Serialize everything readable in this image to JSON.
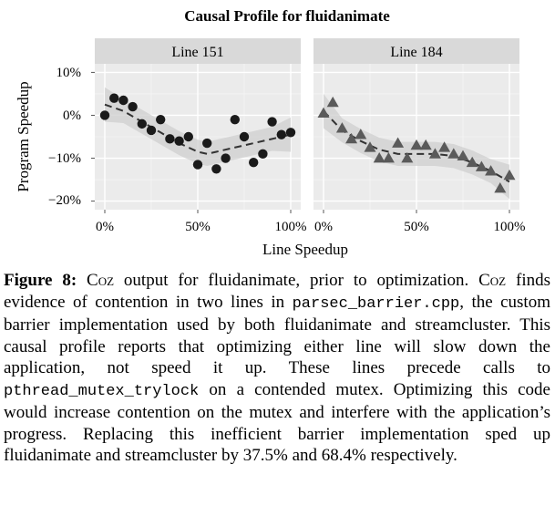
{
  "chart_data": {
    "type": "scatter",
    "title": "Causal Profile for fluidanimate",
    "xlabel": "Line Speedup",
    "ylabel": "Program Speedup",
    "xlim": [
      0,
      1
    ],
    "ylim": [
      -0.22,
      0.12
    ],
    "y_ticks": [
      0.1,
      0.0,
      -0.1,
      -0.2
    ],
    "y_tick_labels": [
      "10%",
      "0%",
      "−10%",
      "−20%"
    ],
    "x_ticks": [
      0.0,
      0.5,
      1.0
    ],
    "x_tick_labels": [
      "0%",
      "50%",
      "100%"
    ],
    "grid": true,
    "panels": [
      {
        "label": "Line 151",
        "marker": "circle",
        "x": [
          0.0,
          0.05,
          0.1,
          0.15,
          0.2,
          0.25,
          0.3,
          0.35,
          0.4,
          0.45,
          0.5,
          0.55,
          0.6,
          0.65,
          0.7,
          0.75,
          0.8,
          0.85,
          0.9,
          0.95,
          1.0
        ],
        "y": [
          0.0,
          0.04,
          0.035,
          0.02,
          -0.02,
          -0.035,
          -0.01,
          -0.055,
          -0.06,
          -0.05,
          -0.115,
          -0.065,
          -0.125,
          -0.1,
          -0.01,
          -0.05,
          -0.11,
          -0.09,
          -0.015,
          -0.045,
          -0.04
        ],
        "trend_x": [
          0.0,
          0.1,
          0.2,
          0.3,
          0.4,
          0.5,
          0.55,
          0.6,
          0.7,
          0.8,
          0.9,
          1.0
        ],
        "trend_y": [
          0.025,
          0.01,
          -0.015,
          -0.04,
          -0.065,
          -0.085,
          -0.09,
          -0.085,
          -0.075,
          -0.065,
          -0.055,
          -0.045
        ]
      },
      {
        "label": "Line 184",
        "marker": "triangle",
        "x": [
          0.0,
          0.05,
          0.1,
          0.15,
          0.2,
          0.25,
          0.3,
          0.35,
          0.4,
          0.45,
          0.5,
          0.55,
          0.6,
          0.65,
          0.7,
          0.75,
          0.8,
          0.85,
          0.9,
          0.95,
          1.0
        ],
        "y": [
          0.005,
          0.03,
          -0.03,
          -0.055,
          -0.045,
          -0.075,
          -0.1,
          -0.1,
          -0.065,
          -0.1,
          -0.07,
          -0.07,
          -0.09,
          -0.075,
          -0.09,
          -0.095,
          -0.11,
          -0.12,
          -0.13,
          -0.17,
          -0.14
        ],
        "trend_x": [
          0.0,
          0.1,
          0.2,
          0.3,
          0.4,
          0.5,
          0.6,
          0.7,
          0.8,
          0.9,
          1.0
        ],
        "trend_y": [
          0.01,
          -0.035,
          -0.06,
          -0.08,
          -0.09,
          -0.09,
          -0.09,
          -0.095,
          -0.11,
          -0.13,
          -0.155
        ]
      }
    ]
  },
  "caption": {
    "label": "Figure 8:",
    "p1": " ",
    "coz1": "Coz",
    "p2": " output for fluidanimate, prior to optimization. ",
    "coz2": "Coz",
    "p3": " finds evidence of contention in two lines in ",
    "code1": "parsec_barrier.cpp",
    "p4": ", the custom barrier implementation used by both fluidanimate and streamcluster. This causal profile reports that optimizing either line will slow down the application, not speed it up. These lines precede calls to ",
    "code2": "pthread_mutex_trylock",
    "p5": " on a contended mutex. Optimizing this code would increase contention on the mutex and interfere with the application’s progress. Replacing this inefficient barrier implementation sped up fluidanimate and streamcluster by 37.5% and 68.4% respectively."
  }
}
